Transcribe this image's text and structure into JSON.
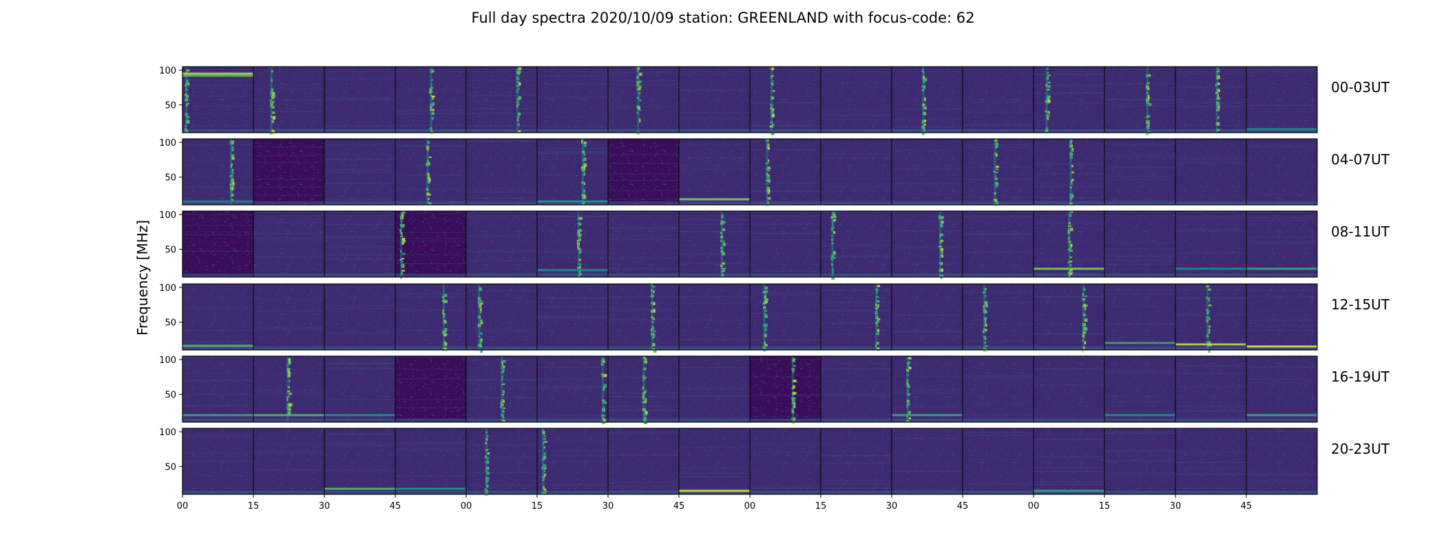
{
  "chart_data": {
    "type": "heatmap",
    "title": "Full day spectra 2020/10/09 station: GREENLAND with focus-code: 62",
    "xlabel": "",
    "ylabel": "Frequency [MHz]",
    "ylim": [
      10,
      105
    ],
    "colormap": "viridis",
    "panels_per_row": 16,
    "minutes_per_panel": 15,
    "y_ticks": [
      {
        "value": 100,
        "label": "100"
      },
      {
        "value": 50,
        "label": "50"
      }
    ],
    "x_ticks": [
      "00",
      "15",
      "30",
      "45",
      "00",
      "15",
      "30",
      "45",
      "00",
      "15",
      "30",
      "45",
      "00",
      "15",
      "30",
      "45"
    ],
    "rows": [
      {
        "label": "00-03UT",
        "bursts": [
          [
            0,
            5
          ],
          [
            1,
            25
          ],
          [
            3,
            50
          ],
          [
            4,
            72
          ],
          [
            6,
            42
          ],
          [
            8,
            30
          ],
          [
            10,
            44
          ],
          [
            12,
            18
          ],
          [
            13,
            60
          ],
          [
            14,
            58
          ]
        ],
        "lines": [
          [
            0,
            95,
            0.9
          ],
          [
            0,
            92,
            0.7
          ],
          [
            15,
            15,
            0.5
          ]
        ],
        "dark": []
      },
      {
        "label": "04-07UT",
        "bursts": [
          [
            0,
            68
          ],
          [
            3,
            45
          ],
          [
            5,
            64
          ],
          [
            8,
            24
          ],
          [
            11,
            45
          ],
          [
            12,
            52
          ]
        ],
        "lines": [
          [
            7,
            18,
            0.8
          ],
          [
            0,
            15,
            0.4
          ],
          [
            5,
            15,
            0.5
          ]
        ],
        "dark": [
          1,
          6
        ]
      },
      {
        "label": "08-11UT",
        "bursts": [
          [
            3,
            8
          ],
          [
            5,
            58
          ],
          [
            7,
            60
          ],
          [
            9,
            16
          ],
          [
            10,
            68
          ],
          [
            12,
            50
          ]
        ],
        "lines": [
          [
            5,
            20,
            0.5
          ],
          [
            12,
            22,
            0.8
          ],
          [
            15,
            22,
            0.6
          ],
          [
            14,
            22,
            0.5
          ]
        ],
        "dark": [
          0,
          3
        ]
      },
      {
        "label": "12-15UT",
        "bursts": [
          [
            3,
            68
          ],
          [
            4,
            18
          ],
          [
            6,
            62
          ],
          [
            8,
            20
          ],
          [
            9,
            78
          ],
          [
            11,
            30
          ],
          [
            12,
            70
          ],
          [
            14,
            45
          ]
        ],
        "lines": [
          [
            0,
            16,
            0.7
          ],
          [
            14,
            18,
            0.9
          ],
          [
            15,
            15,
            0.95
          ],
          [
            13,
            20,
            0.6
          ]
        ],
        "dark": []
      },
      {
        "label": "16-19UT",
        "bursts": [
          [
            1,
            48
          ],
          [
            4,
            50
          ],
          [
            5,
            92
          ],
          [
            6,
            50
          ],
          [
            8,
            60
          ],
          [
            10,
            22
          ]
        ],
        "lines": [
          [
            0,
            20,
            0.6
          ],
          [
            1,
            20,
            0.7
          ],
          [
            2,
            20,
            0.5
          ],
          [
            10,
            20,
            0.6
          ],
          [
            13,
            20,
            0.5
          ],
          [
            15,
            20,
            0.6
          ]
        ],
        "dark": [
          3,
          8
        ]
      },
      {
        "label": "20-23UT",
        "bursts": [
          [
            4,
            28
          ],
          [
            5,
            8
          ]
        ],
        "lines": [
          [
            7,
            15,
            0.95
          ],
          [
            2,
            18,
            0.7
          ],
          [
            3,
            18,
            0.5
          ],
          [
            12,
            15,
            0.6
          ]
        ],
        "dark": []
      }
    ]
  }
}
